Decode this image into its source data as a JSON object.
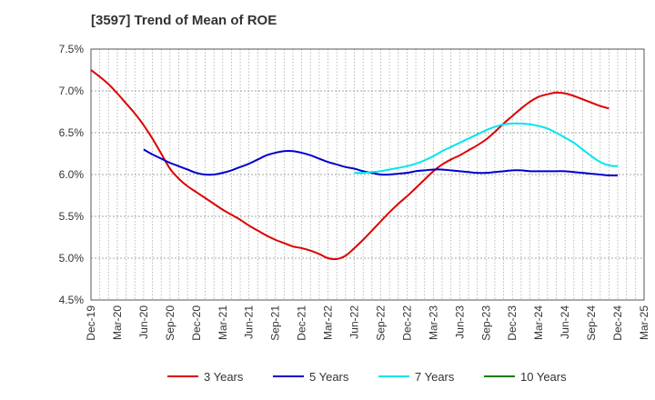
{
  "chart_data": {
    "type": "line",
    "title": "[3597]  Trend of Mean of ROE",
    "xlabel": "",
    "ylabel": "",
    "ylim": [
      4.5,
      7.5
    ],
    "y_ticks": [
      "4.5%",
      "5.0%",
      "5.5%",
      "6.0%",
      "6.5%",
      "7.0%",
      "7.5%"
    ],
    "x_tick_labels": [
      "Dec-19",
      "Mar-20",
      "Jun-20",
      "Sep-20",
      "Dec-20",
      "Mar-21",
      "Jun-21",
      "Sep-21",
      "Dec-21",
      "Mar-22",
      "Jun-22",
      "Sep-22",
      "Dec-22",
      "Mar-23",
      "Jun-23",
      "Sep-23",
      "Dec-23",
      "Mar-24",
      "Jun-24",
      "Sep-24",
      "Dec-24",
      "Mar-25"
    ],
    "grid": true,
    "legend_position": "bottom",
    "series": [
      {
        "name": "3 Years",
        "color": "#dd0000",
        "points": [
          [
            "Dec-19",
            7.25
          ],
          [
            "Jan-20",
            7.17
          ],
          [
            "Feb-20",
            7.08
          ],
          [
            "Mar-20",
            6.97
          ],
          [
            "Apr-20",
            6.85
          ],
          [
            "May-20",
            6.73
          ],
          [
            "Jun-20",
            6.59
          ],
          [
            "Jul-20",
            6.43
          ],
          [
            "Aug-20",
            6.25
          ],
          [
            "Sep-20",
            6.07
          ],
          [
            "Oct-20",
            5.95
          ],
          [
            "Nov-20",
            5.86
          ],
          [
            "Dec-20",
            5.79
          ],
          [
            "Jan-21",
            5.72
          ],
          [
            "Feb-21",
            5.65
          ],
          [
            "Mar-21",
            5.58
          ],
          [
            "Apr-21",
            5.52
          ],
          [
            "May-21",
            5.46
          ],
          [
            "Jun-21",
            5.39
          ],
          [
            "Jul-21",
            5.33
          ],
          [
            "Aug-21",
            5.27
          ],
          [
            "Sep-21",
            5.22
          ],
          [
            "Oct-21",
            5.18
          ],
          [
            "Nov-21",
            5.14
          ],
          [
            "Dec-21",
            5.12
          ],
          [
            "Jan-22",
            5.09
          ],
          [
            "Feb-22",
            5.05
          ],
          [
            "Mar-22",
            5.0
          ],
          [
            "Apr-22",
            4.99
          ],
          [
            "May-22",
            5.03
          ],
          [
            "Jun-22",
            5.12
          ],
          [
            "Jul-22",
            5.22
          ],
          [
            "Aug-22",
            5.33
          ],
          [
            "Sep-22",
            5.44
          ],
          [
            "Oct-22",
            5.55
          ],
          [
            "Nov-22",
            5.65
          ],
          [
            "Dec-22",
            5.74
          ],
          [
            "Jan-23",
            5.84
          ],
          [
            "Feb-23",
            5.94
          ],
          [
            "Mar-23",
            6.04
          ],
          [
            "Apr-23",
            6.12
          ],
          [
            "May-23",
            6.18
          ],
          [
            "Jun-23",
            6.23
          ],
          [
            "Jul-23",
            6.29
          ],
          [
            "Aug-23",
            6.35
          ],
          [
            "Sep-23",
            6.42
          ],
          [
            "Oct-23",
            6.51
          ],
          [
            "Nov-23",
            6.61
          ],
          [
            "Dec-23",
            6.7
          ],
          [
            "Jan-24",
            6.79
          ],
          [
            "Feb-24",
            6.87
          ],
          [
            "Mar-24",
            6.93
          ],
          [
            "Apr-24",
            6.96
          ],
          [
            "May-24",
            6.98
          ],
          [
            "Jun-24",
            6.97
          ],
          [
            "Jul-24",
            6.94
          ],
          [
            "Aug-24",
            6.9
          ],
          [
            "Sep-24",
            6.86
          ],
          [
            "Oct-24",
            6.82
          ],
          [
            "Nov-24",
            6.79
          ]
        ]
      },
      {
        "name": "5 Years",
        "color": "#0000cc",
        "points": [
          [
            "Jun-20",
            6.3
          ],
          [
            "Jul-20",
            6.24
          ],
          [
            "Aug-20",
            6.19
          ],
          [
            "Sep-20",
            6.14
          ],
          [
            "Oct-20",
            6.1
          ],
          [
            "Nov-20",
            6.06
          ],
          [
            "Dec-20",
            6.02
          ],
          [
            "Jan-21",
            6.0
          ],
          [
            "Feb-21",
            6.0
          ],
          [
            "Mar-21",
            6.02
          ],
          [
            "Apr-21",
            6.05
          ],
          [
            "May-21",
            6.09
          ],
          [
            "Jun-21",
            6.13
          ],
          [
            "Jul-21",
            6.18
          ],
          [
            "Aug-21",
            6.23
          ],
          [
            "Sep-21",
            6.26
          ],
          [
            "Oct-21",
            6.28
          ],
          [
            "Nov-21",
            6.28
          ],
          [
            "Dec-21",
            6.26
          ],
          [
            "Jan-22",
            6.23
          ],
          [
            "Feb-22",
            6.19
          ],
          [
            "Mar-22",
            6.15
          ],
          [
            "Apr-22",
            6.12
          ],
          [
            "May-22",
            6.09
          ],
          [
            "Jun-22",
            6.07
          ],
          [
            "Jul-22",
            6.04
          ],
          [
            "Aug-22",
            6.02
          ],
          [
            "Sep-22",
            6.0
          ],
          [
            "Oct-22",
            6.0
          ],
          [
            "Nov-22",
            6.01
          ],
          [
            "Dec-22",
            6.02
          ],
          [
            "Jan-23",
            6.04
          ],
          [
            "Feb-23",
            6.05
          ],
          [
            "Mar-23",
            6.06
          ],
          [
            "Apr-23",
            6.06
          ],
          [
            "May-23",
            6.05
          ],
          [
            "Jun-23",
            6.04
          ],
          [
            "Jul-23",
            6.03
          ],
          [
            "Aug-23",
            6.02
          ],
          [
            "Sep-23",
            6.02
          ],
          [
            "Oct-23",
            6.03
          ],
          [
            "Nov-23",
            6.04
          ],
          [
            "Dec-23",
            6.05
          ],
          [
            "Jan-24",
            6.05
          ],
          [
            "Feb-24",
            6.04
          ],
          [
            "Mar-24",
            6.04
          ],
          [
            "Apr-24",
            6.04
          ],
          [
            "May-24",
            6.04
          ],
          [
            "Jun-24",
            6.04
          ],
          [
            "Jul-24",
            6.03
          ],
          [
            "Aug-24",
            6.02
          ],
          [
            "Sep-24",
            6.01
          ],
          [
            "Oct-24",
            6.0
          ],
          [
            "Nov-24",
            5.99
          ],
          [
            "Dec-24",
            5.99
          ]
        ]
      },
      {
        "name": "7 Years",
        "color": "#00e5ee",
        "points": [
          [
            "Jun-22",
            6.02
          ],
          [
            "Jul-22",
            6.02
          ],
          [
            "Aug-22",
            6.03
          ],
          [
            "Sep-22",
            6.04
          ],
          [
            "Oct-22",
            6.06
          ],
          [
            "Nov-22",
            6.08
          ],
          [
            "Dec-22",
            6.1
          ],
          [
            "Jan-23",
            6.13
          ],
          [
            "Feb-23",
            6.17
          ],
          [
            "Mar-23",
            6.22
          ],
          [
            "Apr-23",
            6.28
          ],
          [
            "May-23",
            6.33
          ],
          [
            "Jun-23",
            6.38
          ],
          [
            "Jul-23",
            6.43
          ],
          [
            "Aug-23",
            6.48
          ],
          [
            "Sep-23",
            6.53
          ],
          [
            "Oct-23",
            6.57
          ],
          [
            "Nov-23",
            6.6
          ],
          [
            "Dec-23",
            6.61
          ],
          [
            "Jan-24",
            6.61
          ],
          [
            "Feb-24",
            6.6
          ],
          [
            "Mar-24",
            6.58
          ],
          [
            "Apr-24",
            6.55
          ],
          [
            "May-24",
            6.5
          ],
          [
            "Jun-24",
            6.44
          ],
          [
            "Jul-24",
            6.38
          ],
          [
            "Aug-24",
            6.3
          ],
          [
            "Sep-24",
            6.22
          ],
          [
            "Oct-24",
            6.15
          ],
          [
            "Nov-24",
            6.11
          ],
          [
            "Dec-24",
            6.1
          ]
        ]
      },
      {
        "name": "10 Years",
        "color": "#008000",
        "points": []
      }
    ]
  }
}
